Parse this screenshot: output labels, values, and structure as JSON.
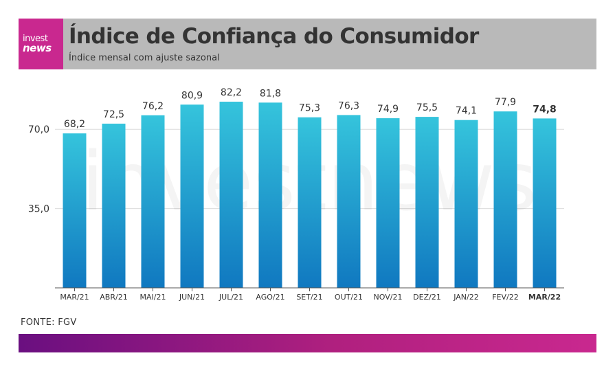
{
  "header": {
    "logo_line1": "invest",
    "logo_line2": "news",
    "title": "Índice de Confiança do Consumidor",
    "subtitle": "Índice mensal com ajuste sazonal"
  },
  "source": "FONTE: FGV",
  "colors": {
    "header_bg": "#b9b9b9",
    "logo_bg": "#c9288f",
    "bar_top": "#35c4dc",
    "bar_bottom": "#1078c0",
    "footer_start": "#6a0f80",
    "footer_end": "#c9288f"
  },
  "chart_data": {
    "type": "bar",
    "categories": [
      "MAR/21",
      "ABR/21",
      "MAI/21",
      "JUN/21",
      "JUL/21",
      "AGO/21",
      "SET/21",
      "OUT/21",
      "NOV/21",
      "DEZ/21",
      "JAN/22",
      "FEV/22",
      "MAR/22"
    ],
    "values": [
      68.2,
      72.5,
      76.2,
      80.9,
      82.2,
      81.8,
      75.3,
      76.3,
      74.9,
      75.5,
      74.1,
      77.9,
      74.8
    ],
    "value_labels": [
      "68,2",
      "72,5",
      "76,2",
      "80,9",
      "82,2",
      "81,8",
      "75,3",
      "76,3",
      "74,9",
      "75,5",
      "74,1",
      "77,9",
      "74,8"
    ],
    "highlight_index": 12,
    "yticks": [
      35,
      70
    ],
    "ytick_labels": [
      "35,0",
      "70,0"
    ],
    "ylim": [
      0,
      82.2
    ],
    "grid": true,
    "watermark": "investnews"
  }
}
